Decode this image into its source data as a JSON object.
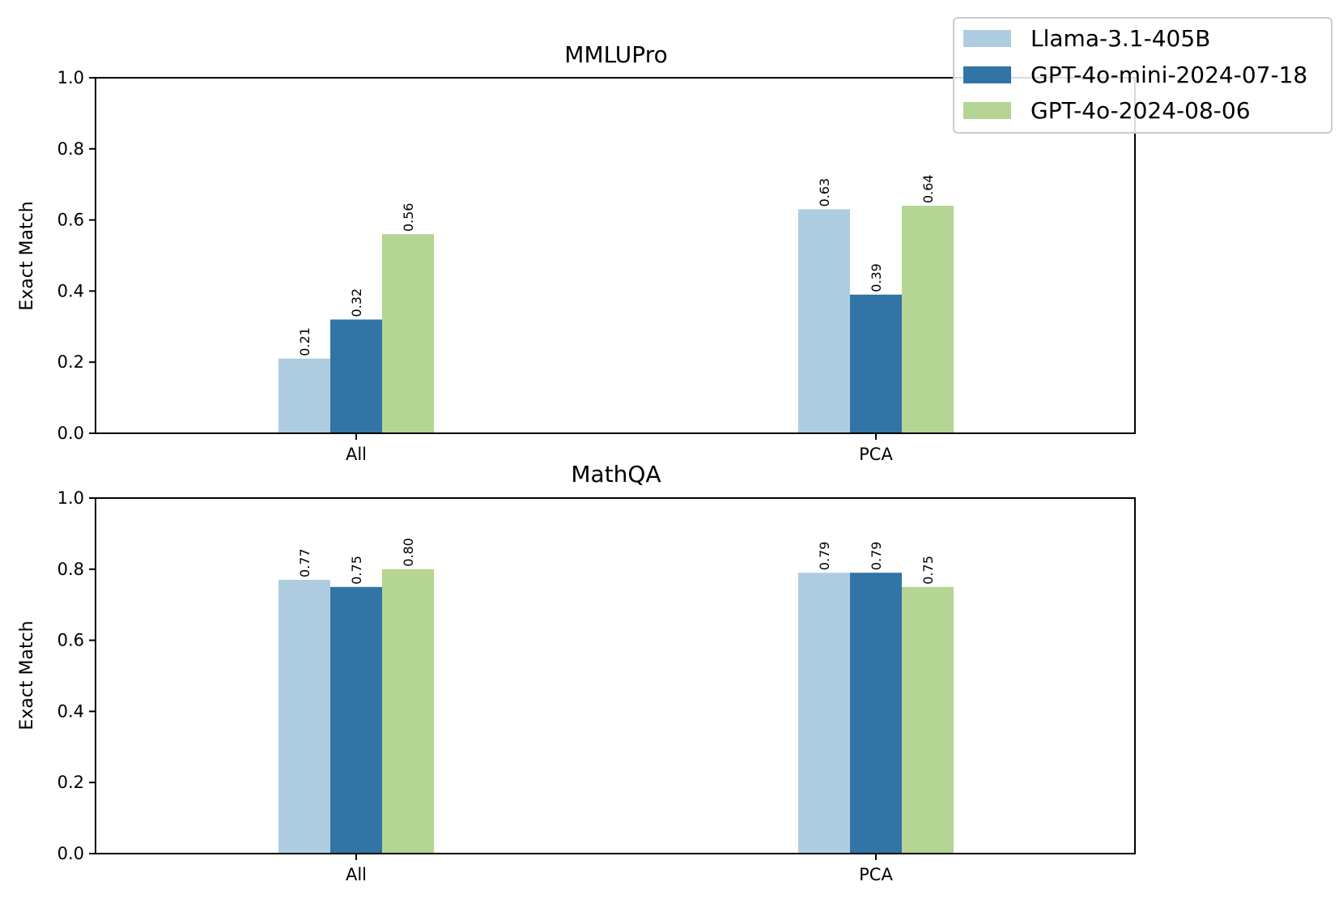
{
  "colors": {
    "series": [
      "#afcde0",
      "#3174a5",
      "#b4d593"
    ],
    "frame": "#000000",
    "legend_border": "#cccccc"
  },
  "chart_data": [
    {
      "type": "bar",
      "title": "MMLUPro",
      "ylabel": "Exact Match",
      "xlabel": "",
      "ylim": [
        0,
        1.0
      ],
      "yticks": [
        "0.0",
        "0.2",
        "0.4",
        "0.6",
        "0.8",
        "1.0"
      ],
      "categories": [
        "All",
        "PCA"
      ],
      "series": [
        {
          "name": "Llama-3.1-405B",
          "values": [
            0.21,
            0.63
          ]
        },
        {
          "name": "GPT-4o-mini-2024-07-18",
          "values": [
            0.32,
            0.39
          ]
        },
        {
          "name": "GPT-4o-2024-08-06",
          "values": [
            0.56,
            0.64
          ]
        }
      ],
      "labels": [
        [
          "0.21",
          "0.63"
        ],
        [
          "0.32",
          "0.39"
        ],
        [
          "0.56",
          "0.64"
        ]
      ],
      "grid": false
    },
    {
      "type": "bar",
      "title": "MathQA",
      "ylabel": "Exact Match",
      "xlabel": "",
      "ylim": [
        0,
        1.0
      ],
      "yticks": [
        "0.0",
        "0.2",
        "0.4",
        "0.6",
        "0.8",
        "1.0"
      ],
      "categories": [
        "All",
        "PCA"
      ],
      "series": [
        {
          "name": "Llama-3.1-405B",
          "values": [
            0.77,
            0.79
          ]
        },
        {
          "name": "GPT-4o-mini-2024-07-18",
          "values": [
            0.75,
            0.79
          ]
        },
        {
          "name": "GPT-4o-2024-08-06",
          "values": [
            0.8,
            0.75
          ]
        }
      ],
      "labels": [
        [
          "0.77",
          "0.79"
        ],
        [
          "0.75",
          "0.79"
        ],
        [
          "0.80",
          "0.75"
        ]
      ],
      "grid": false
    }
  ],
  "legend": {
    "placement": "top-right",
    "entries": [
      "Llama-3.1-405B",
      "GPT-4o-mini-2024-07-18",
      "GPT-4o-2024-08-06"
    ]
  }
}
